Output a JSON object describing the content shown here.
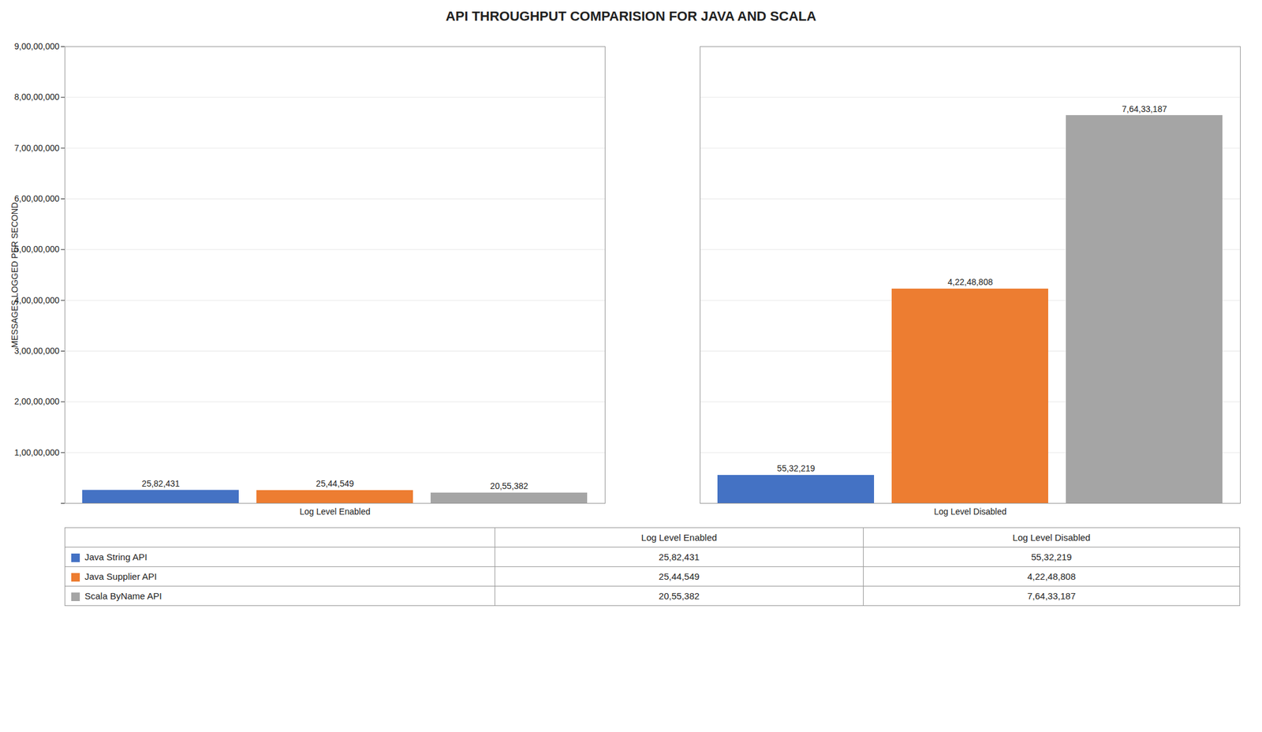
{
  "chart_data": {
    "type": "bar",
    "title": "API THROUGHPUT COMPARISION FOR JAVA AND SCALA",
    "ylabel": "MESSAGES LOGGED PER SECOND",
    "categories": [
      "Log Level Enabled",
      "Log Level Disabled"
    ],
    "series": [
      {
        "name": "Java String API",
        "color": "#4472C4",
        "values": [
          2582431,
          5532219
        ],
        "value_labels": [
          "25,82,431",
          "55,32,219"
        ]
      },
      {
        "name": "Java Supplier API",
        "color": "#ED7D31",
        "values": [
          2544549,
          42248808
        ],
        "value_labels": [
          "25,44,549",
          "4,22,48,808"
        ]
      },
      {
        "name": "Scala ByName API",
        "color": "#A5A5A5",
        "values": [
          2055382,
          76433187
        ],
        "value_labels": [
          "20,55,382",
          "7,64,33,187"
        ]
      }
    ],
    "ylim": [
      0,
      90000000
    ],
    "yticks": [
      {
        "value": 0,
        "label": ""
      },
      {
        "value": 10000000,
        "label": "1,00,00,000"
      },
      {
        "value": 20000000,
        "label": "2,00,00,000"
      },
      {
        "value": 30000000,
        "label": "3,00,00,000"
      },
      {
        "value": 40000000,
        "label": "4,00,00,000"
      },
      {
        "value": 50000000,
        "label": "5,00,00,000"
      },
      {
        "value": 60000000,
        "label": "6,00,00,000"
      },
      {
        "value": 70000000,
        "label": "7,00,00,000"
      },
      {
        "value": 80000000,
        "label": "8,00,00,000"
      },
      {
        "value": 90000000,
        "label": "9,00,00,000"
      }
    ],
    "grid": true,
    "data_labels": true
  }
}
